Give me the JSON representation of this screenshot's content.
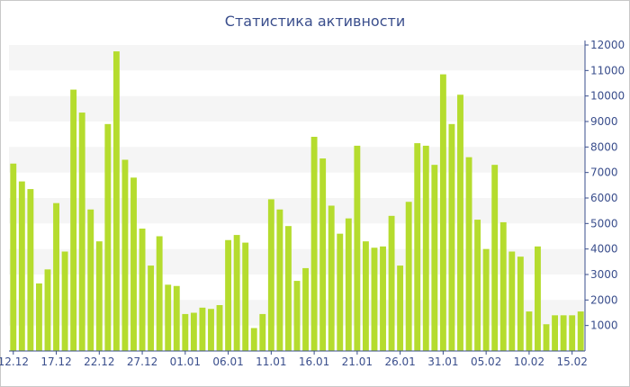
{
  "chart_data": {
    "type": "bar",
    "title": "Статистика активности",
    "xlabel": "",
    "ylabel": "",
    "ylim": [
      0,
      12000
    ],
    "grid": true,
    "y_axis_side": "right",
    "yticks": [
      1000,
      2000,
      3000,
      4000,
      5000,
      6000,
      7000,
      8000,
      9000,
      10000,
      11000,
      12000
    ],
    "x_tick_labels": [
      "12.12",
      "17.12",
      "22.12",
      "27.12",
      "01.01",
      "06.01",
      "11.01",
      "16.01",
      "21.01",
      "26.01",
      "31.01",
      "05.02",
      "10.02",
      "15.02"
    ],
    "categories": [
      "12.12",
      "13.12",
      "14.12",
      "15.12",
      "16.12",
      "17.12",
      "18.12",
      "19.12",
      "20.12",
      "21.12",
      "22.12",
      "23.12",
      "24.12",
      "25.12",
      "26.12",
      "27.12",
      "28.12",
      "29.12",
      "30.12",
      "31.12",
      "01.01",
      "02.01",
      "03.01",
      "04.01",
      "05.01",
      "06.01",
      "07.01",
      "08.01",
      "09.01",
      "10.01",
      "11.01",
      "12.01",
      "13.01",
      "14.01",
      "15.01",
      "16.01",
      "17.01",
      "18.01",
      "19.01",
      "20.01",
      "21.01",
      "22.01",
      "23.01",
      "24.01",
      "25.01",
      "26.01",
      "27.01",
      "28.01",
      "29.01",
      "30.01",
      "31.01",
      "01.02",
      "02.02",
      "03.02",
      "04.02",
      "05.02",
      "06.02",
      "07.02",
      "08.02",
      "09.02",
      "10.02",
      "11.02",
      "12.02",
      "13.02",
      "14.02",
      "15.02",
      "16.02"
    ],
    "values": [
      7350,
      6650,
      6350,
      2650,
      3200,
      5800,
      3900,
      10250,
      9350,
      5550,
      4300,
      8900,
      11750,
      7500,
      6800,
      4800,
      3350,
      4500,
      2600,
      2550,
      1450,
      1500,
      1700,
      1650,
      1800,
      4350,
      4550,
      4250,
      900,
      1450,
      5950,
      5550,
      4900,
      2750,
      3250,
      8400,
      7550,
      5700,
      4600,
      5200,
      8050,
      4300,
      4050,
      4100,
      5300,
      3350,
      5850,
      8150,
      8050,
      7300,
      10850,
      8900,
      10050,
      7600,
      5150,
      4000,
      7300,
      5050,
      3900,
      3700,
      1550,
      4100,
      1050,
      1400,
      1400,
      1400,
      1550
    ],
    "bar_color": "#b5dc2e",
    "band_color": "#f5f5f5"
  }
}
